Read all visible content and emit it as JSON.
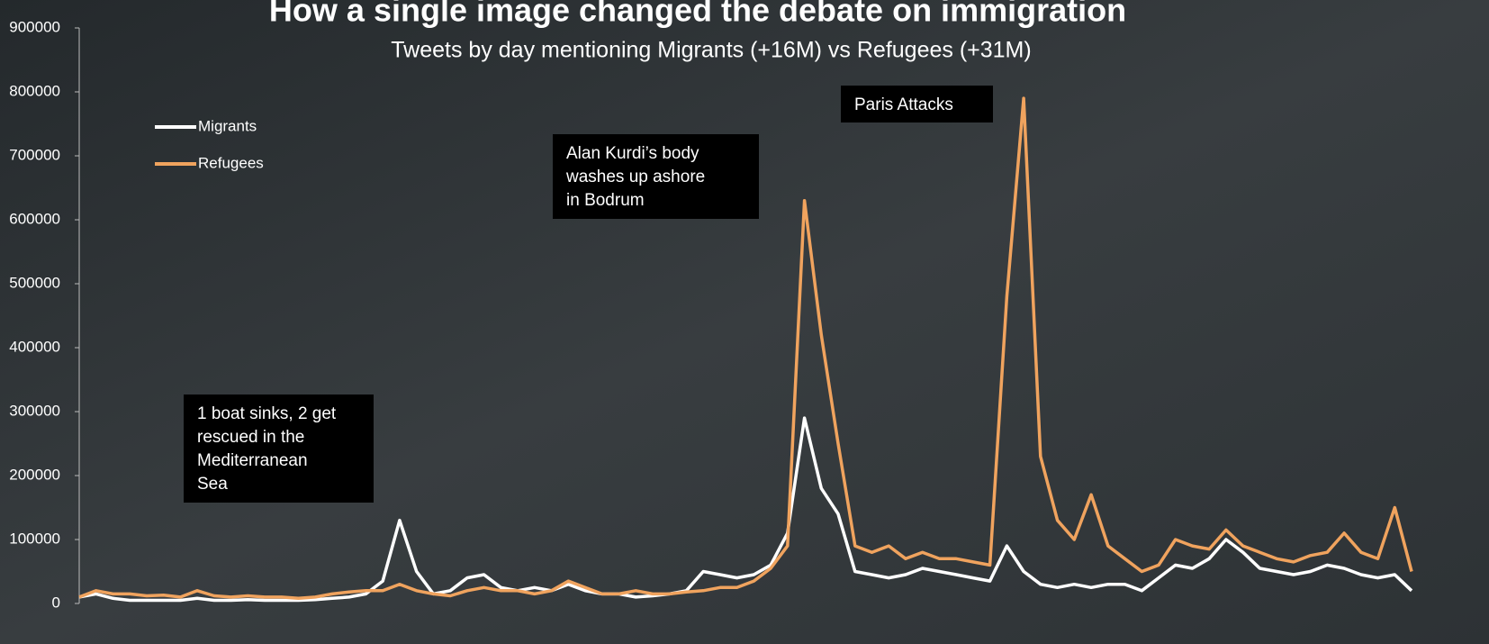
{
  "chart_data": {
    "type": "line",
    "title": "How a single image changed the debate on immigration",
    "subtitle": "Tweets by day mentioning Migrants (+16M) vs Refugees (+31M)",
    "categories": [
      null,
      null,
      null,
      null,
      null,
      null,
      null,
      null,
      null,
      null,
      null,
      null,
      null,
      null,
      null,
      null,
      null,
      null,
      null,
      null,
      null,
      null,
      null,
      null,
      null,
      null,
      null,
      null,
      null,
      null,
      null,
      null,
      null,
      null,
      null,
      null,
      null,
      null,
      null,
      null,
      null,
      null,
      null,
      null,
      null,
      null,
      null,
      null,
      null,
      null,
      null,
      null,
      null,
      null,
      null,
      null,
      null,
      null,
      null,
      null,
      null,
      null,
      null,
      null,
      null,
      null,
      null,
      null,
      null,
      null,
      null,
      null,
      null,
      null,
      null,
      null,
      null,
      null,
      null,
      null
    ],
    "series": [
      {
        "name": "Migrants",
        "color": "#ffffff",
        "values": [
          10000,
          15000,
          8000,
          5000,
          5000,
          5000,
          5000,
          8000,
          5000,
          5000,
          6000,
          5000,
          5000,
          5000,
          6000,
          8000,
          10000,
          15000,
          35000,
          130000,
          50000,
          15000,
          20000,
          40000,
          45000,
          25000,
          20000,
          25000,
          20000,
          30000,
          20000,
          15000,
          15000,
          10000,
          12000,
          15000,
          20000,
          50000,
          45000,
          40000,
          45000,
          60000,
          110000,
          290000,
          180000,
          140000,
          50000,
          45000,
          40000,
          45000,
          55000,
          50000,
          45000,
          40000,
          35000,
          90000,
          50000,
          30000,
          25000,
          30000,
          25000,
          30000,
          30000,
          20000,
          40000,
          60000,
          55000,
          70000,
          100000,
          80000,
          55000,
          50000,
          45000,
          50000,
          60000,
          55000,
          45000,
          40000,
          45000,
          20000
        ]
      },
      {
        "name": "Refugees",
        "color": "#f0a35e",
        "values": [
          10000,
          20000,
          15000,
          15000,
          12000,
          13000,
          10000,
          20000,
          12000,
          10000,
          12000,
          10000,
          10000,
          8000,
          10000,
          15000,
          18000,
          20000,
          20000,
          30000,
          20000,
          15000,
          12000,
          20000,
          25000,
          20000,
          20000,
          15000,
          20000,
          35000,
          25000,
          15000,
          15000,
          20000,
          15000,
          15000,
          18000,
          20000,
          25000,
          25000,
          35000,
          55000,
          90000,
          630000,
          420000,
          250000,
          90000,
          80000,
          90000,
          70000,
          80000,
          70000,
          70000,
          65000,
          60000,
          480000,
          790000,
          230000,
          130000,
          100000,
          170000,
          90000,
          70000,
          50000,
          60000,
          100000,
          90000,
          85000,
          115000,
          90000,
          80000,
          70000,
          65000,
          75000,
          80000,
          110000,
          80000,
          70000,
          150000,
          50000
        ]
      }
    ],
    "ylim": [
      0,
      900000
    ],
    "yticks": [
      0,
      100000,
      200000,
      300000,
      400000,
      500000,
      600000,
      700000,
      800000,
      900000
    ],
    "legend": "upper left",
    "annotations": [
      {
        "lines": [
          "1 boat sinks, 2 get",
          "rescued in the",
          "Mediterranean",
          "Sea"
        ]
      },
      {
        "lines": [
          "Alan Kurdi’s body",
          "washes up ashore",
          "in Bodrum"
        ]
      },
      {
        "lines": [
          "Paris Attacks"
        ]
      }
    ]
  }
}
